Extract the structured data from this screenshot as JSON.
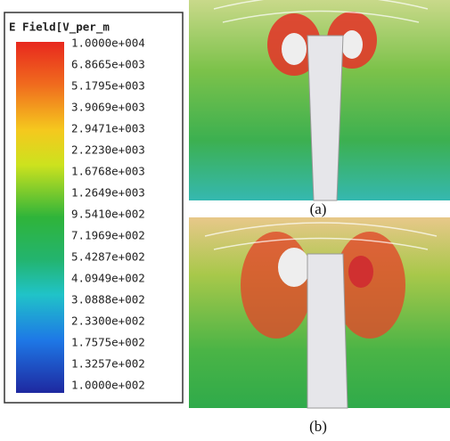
{
  "legend": {
    "title": "E Field[V_per_m",
    "labels": [
      "1.0000e+004",
      "6.8665e+003",
      "5.1795e+003",
      "3.9069e+003",
      "2.9471e+003",
      "2.2230e+003",
      "1.6768e+003",
      "1.2649e+003",
      "9.5410e+002",
      "7.1969e+002",
      "5.4287e+002",
      "4.0949e+002",
      "3.0888e+002",
      "2.3300e+002",
      "1.7575e+002",
      "1.3257e+002",
      "1.0000e+002"
    ]
  },
  "panels": [
    {
      "caption": "(a)"
    },
    {
      "caption": "(b)"
    }
  ]
}
